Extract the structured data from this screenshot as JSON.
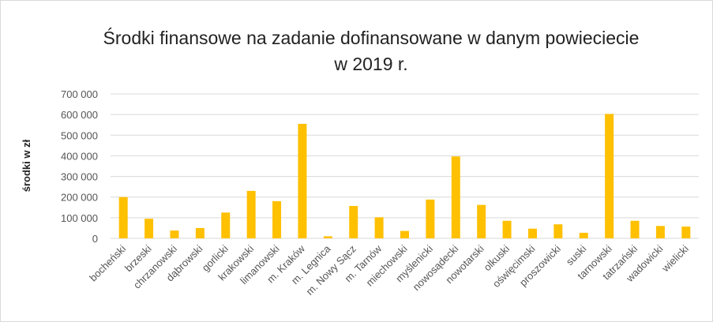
{
  "chart_data": {
    "type": "bar",
    "title": "Środki finansowe na zadanie dofinansowane w danym powieciecie w 2019 r.",
    "y_label": "środki w zł",
    "categories": [
      "bocheński",
      "brzeski",
      "chrzanowski",
      "dąbrowski",
      "gorlicki",
      "krakowski",
      "limanowski",
      "m. Kraków",
      "m. Legnica",
      "m. Nowy Sącz",
      "m. Tarnów",
      "miechowski",
      "myślenicki",
      "nowosądecki",
      "nowotarski",
      "olkuski",
      "oświęcimski",
      "proszowicki",
      "suski",
      "tarnowski",
      "tatrzański",
      "wadowicki",
      "wielicki"
    ],
    "values": [
      200000,
      95000,
      38000,
      50000,
      125000,
      230000,
      180000,
      555000,
      10000,
      157000,
      102000,
      36000,
      188000,
      397000,
      162000,
      85000,
      47000,
      68000,
      27000,
      603000,
      85000,
      60000,
      57000
    ],
    "color": "#ffc000",
    "ylim": [
      0,
      700000
    ],
    "yticks": [
      0,
      {
        "value": 100000,
        "label": "100 000"
      },
      {
        "value": 200000,
        "label": "200 000"
      },
      {
        "value": 300000,
        "label": "300 000"
      },
      {
        "value": 400000,
        "label": "400 000"
      },
      {
        "value": 500000,
        "label": "500 000"
      },
      {
        "value": 600000,
        "label": "600 000"
      },
      {
        "value": 700000,
        "label": "700 000"
      }
    ],
    "grid": true
  }
}
